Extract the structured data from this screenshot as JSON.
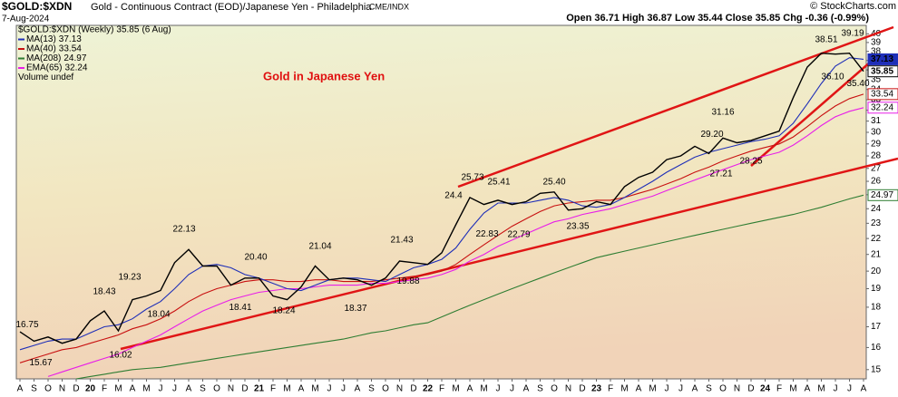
{
  "chart_data": {
    "type": "line",
    "symbol": "$GOLD:$XDN",
    "description": "Gold - Continuous Contract (EOD)/Japanese Yen - Philadelphia",
    "exchange": "CME/INDX",
    "date": "7-Aug-2024",
    "quote": "Open 36.71 High 36.87 Low 35.44 Close 35.85 Chg -0.36 (-0.99%)",
    "credit": "© StockCharts.com",
    "title": "Gold in Japanese Yen",
    "legend_date": "(6 Aug)",
    "volume_note": "Volume undef",
    "log_scale": true,
    "ylim": [
      14.6,
      41
    ],
    "yticks": [
      15,
      16,
      17,
      18,
      19,
      20,
      21,
      22,
      23,
      24,
      25,
      26,
      27,
      28,
      29,
      30,
      31,
      32,
      33,
      34,
      35,
      36,
      37,
      38,
      39,
      40
    ],
    "categories": [
      "A",
      "S",
      "O",
      "N",
      "D",
      "20",
      "F",
      "M",
      "A",
      "M",
      "J",
      "J",
      "A",
      "S",
      "O",
      "N",
      "D",
      "21",
      "F",
      "M",
      "A",
      "M",
      "J",
      "J",
      "A",
      "S",
      "O",
      "N",
      "D",
      "22",
      "F",
      "M",
      "A",
      "M",
      "J",
      "J",
      "A",
      "S",
      "O",
      "N",
      "D",
      "23",
      "F",
      "M",
      "A",
      "M",
      "J",
      "J",
      "A",
      "S",
      "O",
      "N",
      "D",
      "24",
      "F",
      "M",
      "A",
      "M",
      "J",
      "J",
      "A"
    ],
    "series": [
      {
        "name": "$GOLD:$XDN (Weekly)",
        "color": "#000000",
        "values": [
          16.75,
          16.3,
          16.5,
          16.2,
          16.4,
          17.3,
          17.8,
          16.8,
          18.4,
          18.6,
          18.9,
          20.5,
          21.3,
          20.3,
          20.3,
          19.2,
          19.6,
          19.6,
          18.6,
          18.4,
          19.1,
          20.3,
          19.5,
          19.6,
          19.5,
          19.2,
          19.6,
          20.6,
          20.5,
          20.4,
          21.1,
          22.9,
          24.8,
          24.3,
          24.6,
          24.3,
          24.5,
          25.1,
          25.2,
          23.9,
          24.0,
          24.5,
          24.3,
          25.6,
          26.3,
          26.7,
          27.7,
          28.0,
          28.8,
          28.2,
          29.5,
          29.1,
          29.3,
          29.7,
          30.1,
          33.2,
          36.3,
          37.8,
          37.7,
          37.8,
          35.85
        ]
      },
      {
        "name": "MA(13)",
        "color": "#1f2fb8",
        "values": [
          15.9,
          16.1,
          16.3,
          16.4,
          16.4,
          16.7,
          17.0,
          17.1,
          17.4,
          17.9,
          18.3,
          19.0,
          19.8,
          20.3,
          20.4,
          20.2,
          19.8,
          19.6,
          19.3,
          19.0,
          18.9,
          19.2,
          19.5,
          19.6,
          19.6,
          19.5,
          19.4,
          19.8,
          20.2,
          20.4,
          20.7,
          21.4,
          22.6,
          23.7,
          24.4,
          24.4,
          24.4,
          24.6,
          24.8,
          24.6,
          24.2,
          24.1,
          24.3,
          24.8,
          25.4,
          26.0,
          26.7,
          27.3,
          27.9,
          28.3,
          28.6,
          28.9,
          29.2,
          29.4,
          29.7,
          30.8,
          32.6,
          34.6,
          36.4,
          37.3,
          37.13
        ]
      },
      {
        "name": "MA(40)",
        "color": "#c81010",
        "values": [
          15.3,
          15.5,
          15.7,
          15.9,
          16.0,
          16.2,
          16.4,
          16.6,
          16.9,
          17.1,
          17.4,
          17.8,
          18.3,
          18.7,
          19.0,
          19.2,
          19.4,
          19.5,
          19.5,
          19.4,
          19.4,
          19.5,
          19.5,
          19.4,
          19.4,
          19.4,
          19.5,
          19.6,
          19.7,
          19.8,
          20.0,
          20.4,
          21.0,
          21.6,
          22.2,
          22.8,
          23.3,
          23.8,
          24.2,
          24.4,
          24.5,
          24.6,
          24.6,
          24.8,
          25.1,
          25.4,
          25.8,
          26.2,
          26.7,
          27.1,
          27.6,
          28.0,
          28.4,
          28.7,
          29.0,
          29.6,
          30.5,
          31.5,
          32.4,
          33.1,
          33.54
        ]
      },
      {
        "name": "MA(208)",
        "color": "#2e7d32",
        "values": [
          null,
          null,
          null,
          null,
          14.6,
          14.7,
          14.8,
          14.9,
          15.0,
          15.05,
          15.1,
          15.2,
          15.3,
          15.4,
          15.5,
          15.6,
          15.7,
          15.8,
          15.9,
          16.0,
          16.1,
          16.2,
          16.3,
          16.4,
          16.55,
          16.7,
          16.8,
          16.95,
          17.1,
          17.2,
          17.5,
          17.8,
          18.1,
          18.4,
          18.7,
          19.0,
          19.3,
          19.6,
          19.9,
          20.2,
          20.5,
          20.8,
          21.0,
          21.2,
          21.4,
          21.6,
          21.8,
          22.0,
          22.2,
          22.4,
          22.6,
          22.8,
          23.0,
          23.2,
          23.4,
          23.6,
          23.85,
          24.1,
          24.4,
          24.7,
          24.97
        ]
      },
      {
        "name": "EMA(65)",
        "color": "#e81ee8",
        "values": [
          null,
          null,
          14.7,
          14.9,
          15.1,
          15.3,
          15.5,
          15.7,
          16.0,
          16.3,
          16.6,
          17.0,
          17.4,
          17.8,
          18.1,
          18.4,
          18.6,
          18.8,
          18.9,
          19.0,
          19.0,
          19.1,
          19.2,
          19.2,
          19.2,
          19.3,
          19.3,
          19.4,
          19.5,
          19.6,
          19.8,
          20.1,
          20.6,
          21.0,
          21.5,
          21.9,
          22.3,
          22.7,
          23.1,
          23.3,
          23.6,
          23.8,
          24.0,
          24.3,
          24.6,
          24.9,
          25.3,
          25.7,
          26.1,
          26.5,
          26.9,
          27.3,
          27.7,
          28.0,
          28.3,
          28.9,
          29.7,
          30.6,
          31.4,
          31.9,
          32.24
        ]
      }
    ],
    "annotations": [
      16.75,
      15.67,
      18.43,
      16.02,
      19.23,
      18.04,
      22.13,
      {
        "value": 20.4,
        "label": "20.40"
      },
      18.41,
      18.24,
      21.04,
      18.37,
      21.43,
      19.88,
      24.4,
      25.73,
      25.41,
      22.83,
      22.79,
      {
        "value": 25.4,
        "label": "25.40"
      },
      23.35,
      {
        "value": 29.2,
        "label": "29.20"
      },
      31.16,
      27.21,
      28.25,
      38.51,
      39.19,
      {
        "value": 36.1,
        "label": "36.10"
      },
      {
        "value": 35.4,
        "label": "35.40"
      }
    ]
  }
}
